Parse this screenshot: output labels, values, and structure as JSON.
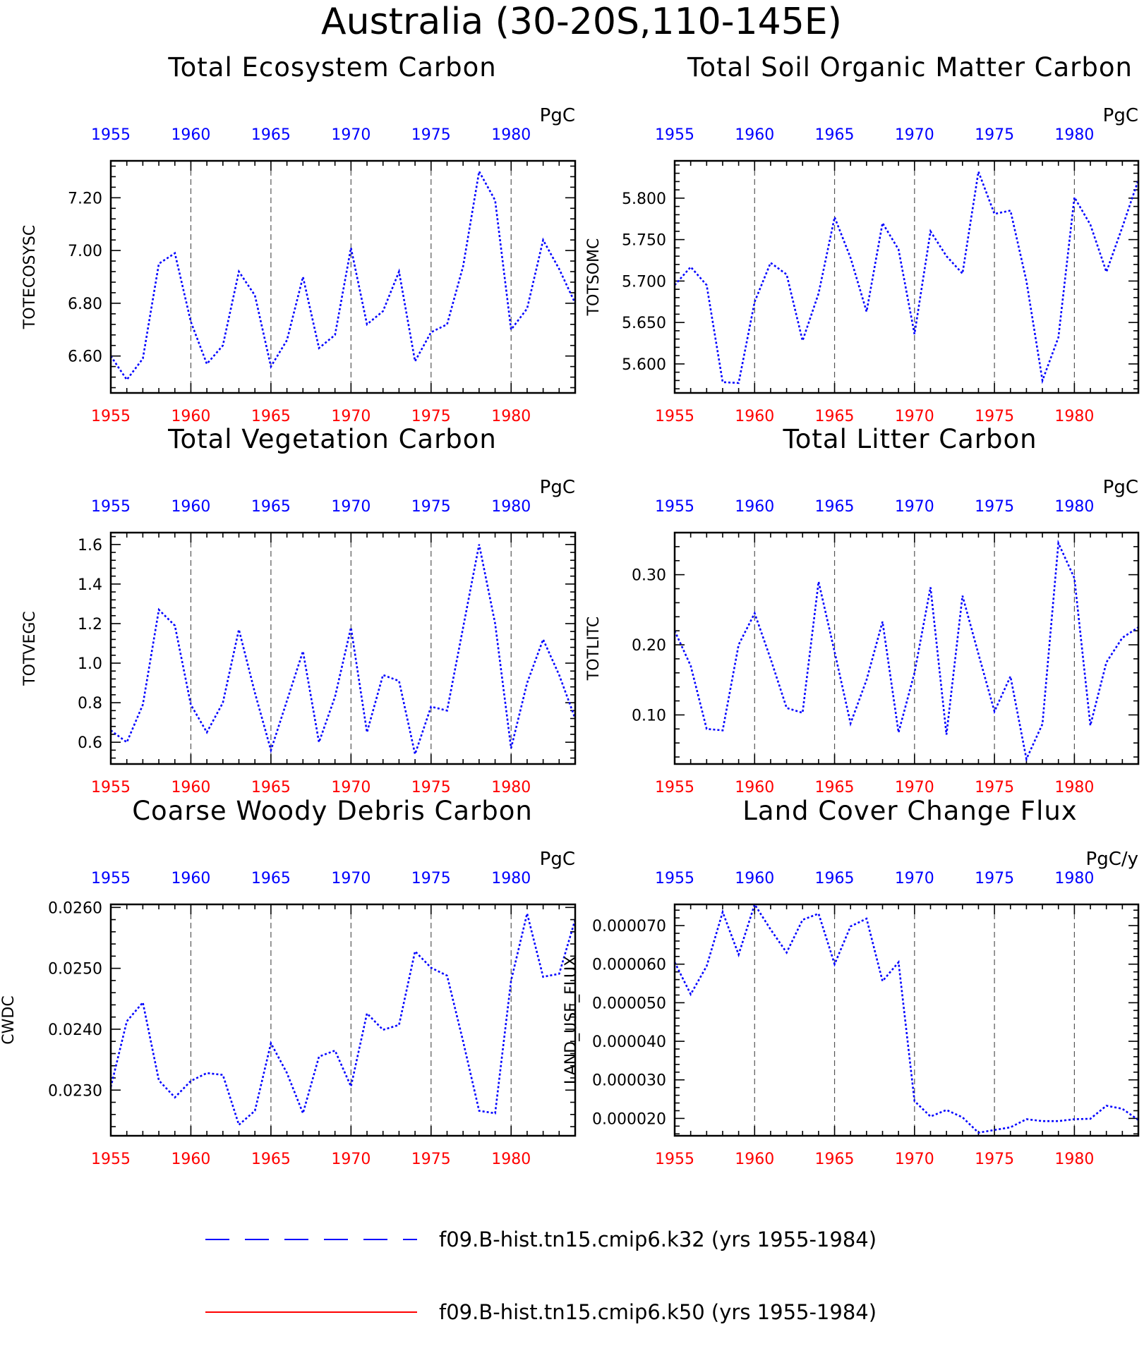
{
  "figure": {
    "title": "Australia (30-20S,110-145E)",
    "top_axis_color": "#0000ff",
    "bottom_axis_color": "#ff0000",
    "line_color": "#0000ff"
  },
  "legend": [
    {
      "label": "f09.B-hist.tn15.cmip6.k32 (yrs 1955-1984)",
      "color": "#0000ff",
      "style": "long-dash"
    },
    {
      "label": "f09.B-hist.tn15.cmip6.k50 (yrs 1955-1984)",
      "color": "#ff0000",
      "style": "solid"
    }
  ],
  "chart_data": [
    {
      "type": "line",
      "title": "Total Ecosystem Carbon",
      "ylabel": "TOTECOSYSC",
      "units": "PgC",
      "xlim": [
        1955,
        1984
      ],
      "ylim": [
        6.46,
        7.34
      ],
      "xticks": [
        1955,
        1960,
        1965,
        1970,
        1975,
        1980
      ],
      "yticks": [
        "6.60",
        "6.80",
        "7.00",
        "7.20"
      ],
      "grid": "vertical dashed at 1960,1965,1970,1975,1980",
      "series": [
        {
          "x": [
            1955,
            1956,
            1957,
            1958,
            1959,
            1960,
            1961,
            1962,
            1963,
            1964,
            1965,
            1966,
            1967,
            1968,
            1969,
            1970,
            1971,
            1972,
            1973,
            1974,
            1975,
            1976,
            1977,
            1978,
            1979,
            1980,
            1981,
            1982,
            1983,
            1984
          ],
          "values": [
            6.6,
            6.51,
            6.59,
            6.95,
            6.99,
            6.73,
            6.57,
            6.64,
            6.92,
            6.83,
            6.56,
            6.66,
            6.9,
            6.63,
            6.68,
            7.01,
            6.72,
            6.77,
            6.92,
            6.58,
            6.69,
            6.72,
            6.94,
            7.3,
            7.19,
            6.7,
            6.78,
            7.04,
            6.93,
            6.8
          ]
        }
      ]
    },
    {
      "type": "line",
      "title": "Total Soil Organic Matter Carbon",
      "ylabel": "TOTSOMC",
      "units": "PgC",
      "xlim": [
        1955,
        1984
      ],
      "ylim": [
        5.565,
        5.845
      ],
      "xticks": [
        1955,
        1960,
        1965,
        1970,
        1975,
        1980
      ],
      "yticks": [
        "5.600",
        "5.650",
        "5.700",
        "5.750",
        "5.800"
      ],
      "grid": "vertical dashed at 1960,1965,1970,1975,1980",
      "series": [
        {
          "x": [
            1955,
            1956,
            1957,
            1958,
            1959,
            1960,
            1961,
            1962,
            1963,
            1964,
            1965,
            1966,
            1967,
            1968,
            1969,
            1970,
            1971,
            1972,
            1973,
            1974,
            1975,
            1976,
            1977,
            1978,
            1979,
            1980,
            1981,
            1982,
            1983,
            1984
          ],
          "values": [
            5.695,
            5.717,
            5.695,
            5.578,
            5.577,
            5.675,
            5.722,
            5.708,
            5.628,
            5.685,
            5.777,
            5.728,
            5.663,
            5.77,
            5.738,
            5.636,
            5.76,
            5.73,
            5.709,
            5.832,
            5.781,
            5.785,
            5.7,
            5.58,
            5.632,
            5.801,
            5.768,
            5.711,
            5.765,
            5.822
          ]
        }
      ]
    },
    {
      "type": "line",
      "title": "Total Vegetation Carbon",
      "ylabel": "TOTVEGC",
      "units": "PgC",
      "xlim": [
        1955,
        1984
      ],
      "ylim": [
        0.49,
        1.66
      ],
      "xticks": [
        1955,
        1960,
        1965,
        1970,
        1975,
        1980
      ],
      "yticks": [
        "0.6",
        "0.8",
        "1.0",
        "1.2",
        "1.4",
        "1.6"
      ],
      "grid": "vertical dashed at 1960,1965,1970,1975,1980",
      "series": [
        {
          "x": [
            1955,
            1956,
            1957,
            1958,
            1959,
            1960,
            1961,
            1962,
            1963,
            1964,
            1965,
            1966,
            1967,
            1968,
            1969,
            1970,
            1971,
            1972,
            1973,
            1974,
            1975,
            1976,
            1977,
            1978,
            1979,
            1980,
            1981,
            1982,
            1983,
            1984
          ],
          "values": [
            0.66,
            0.6,
            0.79,
            1.27,
            1.19,
            0.79,
            0.65,
            0.8,
            1.17,
            0.85,
            0.56,
            0.81,
            1.06,
            0.6,
            0.83,
            1.18,
            0.65,
            0.94,
            0.91,
            0.54,
            0.78,
            0.76,
            1.18,
            1.6,
            1.2,
            0.57,
            0.9,
            1.12,
            0.94,
            0.72
          ]
        }
      ]
    },
    {
      "type": "line",
      "title": "Total Litter Carbon",
      "ylabel": "TOTLITC",
      "units": "PgC",
      "xlim": [
        1955,
        1984
      ],
      "ylim": [
        0.03,
        0.36
      ],
      "xticks": [
        1955,
        1960,
        1965,
        1970,
        1975,
        1980
      ],
      "yticks": [
        "0.10",
        "0.20",
        "0.30"
      ],
      "grid": "vertical dashed at 1960,1965,1970,1975,1980",
      "series": [
        {
          "x": [
            1955,
            1956,
            1957,
            1958,
            1959,
            1960,
            1961,
            1962,
            1963,
            1964,
            1965,
            1966,
            1967,
            1968,
            1969,
            1970,
            1971,
            1972,
            1973,
            1974,
            1975,
            1976,
            1977,
            1978,
            1979,
            1980,
            1981,
            1982,
            1983,
            1984
          ],
          "values": [
            0.22,
            0.17,
            0.08,
            0.078,
            0.2,
            0.245,
            0.18,
            0.11,
            0.103,
            0.29,
            0.19,
            0.088,
            0.15,
            0.233,
            0.075,
            0.16,
            0.282,
            0.072,
            0.27,
            0.187,
            0.105,
            0.155,
            0.037,
            0.087,
            0.345,
            0.295,
            0.085,
            0.175,
            0.21,
            0.225
          ]
        }
      ]
    },
    {
      "type": "line",
      "title": "Coarse Woody Debris Carbon",
      "ylabel": "CWDC",
      "units": "PgC",
      "xlim": [
        1955,
        1984
      ],
      "ylim": [
        0.02225,
        0.02605
      ],
      "xticks": [
        1955,
        1960,
        1965,
        1970,
        1975,
        1980
      ],
      "yticks": [
        "0.0230",
        "0.0240",
        "0.0250",
        "0.0260"
      ],
      "grid": "vertical dashed at 1960,1965,1970,1975,1980",
      "series": [
        {
          "x": [
            1955,
            1956,
            1957,
            1958,
            1959,
            1960,
            1961,
            1962,
            1963,
            1964,
            1965,
            1966,
            1967,
            1968,
            1969,
            1970,
            1971,
            1972,
            1973,
            1974,
            1975,
            1976,
            1977,
            1978,
            1979,
            1980,
            1981,
            1982,
            1983,
            1984
          ],
          "values": [
            0.02305,
            0.02413,
            0.02444,
            0.02316,
            0.02288,
            0.02315,
            0.02328,
            0.02325,
            0.02243,
            0.02266,
            0.02377,
            0.02328,
            0.02262,
            0.02355,
            0.02365,
            0.02306,
            0.02426,
            0.02399,
            0.02407,
            0.02528,
            0.02501,
            0.02488,
            0.0238,
            0.02266,
            0.02262,
            0.0248,
            0.0259,
            0.02486,
            0.02491,
            0.0258
          ]
        }
      ]
    },
    {
      "type": "line",
      "title": "Land Cover Change Flux",
      "ylabel": "LAND_USE_FLUX",
      "units": "PgC/y",
      "xlim": [
        1955,
        1984
      ],
      "ylim": [
        1.55e-05,
        7.55e-05
      ],
      "xticks": [
        1955,
        1960,
        1965,
        1970,
        1975,
        1980
      ],
      "yticks": [
        "0.000020",
        "0.000030",
        "0.000040",
        "0.000050",
        "0.000060",
        "0.000070"
      ],
      "grid": "vertical dashed at 1960,1965,1970,1975,1980",
      "series": [
        {
          "x": [
            1955,
            1956,
            1957,
            1958,
            1959,
            1960,
            1961,
            1962,
            1963,
            1964,
            1965,
            1966,
            1967,
            1968,
            1969,
            1970,
            1971,
            1972,
            1973,
            1974,
            1975,
            1976,
            1977,
            1978,
            1979,
            1980,
            1981,
            1982,
            1983,
            1984
          ],
          "values": [
            6.05e-05,
            5.22e-05,
            5.95e-05,
            7.35e-05,
            6.25e-05,
            7.55e-05,
            6.9e-05,
            6.3e-05,
            7.15e-05,
            7.31e-05,
            6e-05,
            6.98e-05,
            7.18e-05,
            5.56e-05,
            6.05e-05,
            2.45e-05,
            2.05e-05,
            2.22e-05,
            2.03e-05,
            1.63e-05,
            1.7e-05,
            1.77e-05,
            1.98e-05,
            1.93e-05,
            1.93e-05,
            1.98e-05,
            1.99e-05,
            2.33e-05,
            2.25e-05,
            1.96e-05
          ]
        }
      ]
    }
  ]
}
